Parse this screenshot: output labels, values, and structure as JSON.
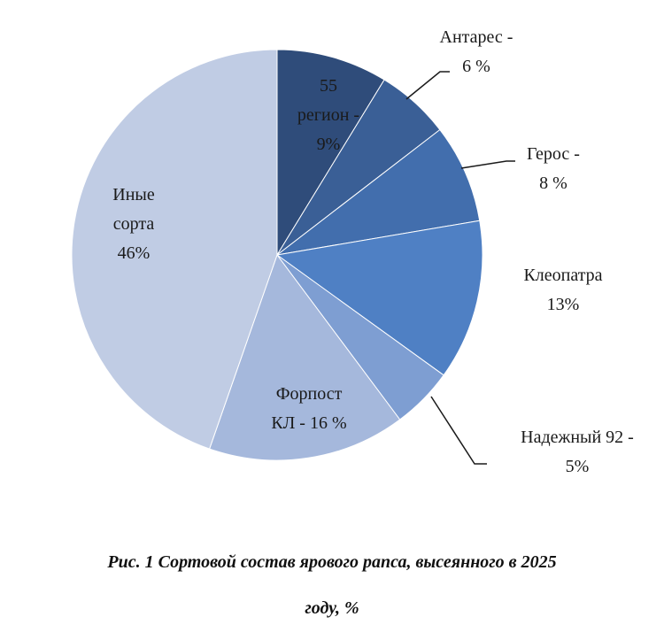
{
  "chart_data": {
    "type": "pie",
    "slices": [
      {
        "label_lines": [
          "55",
          "регион -",
          "9%"
        ],
        "value": 9,
        "color": "#2f4c7a"
      },
      {
        "label_lines": [
          "Антарес -",
          "6 %"
        ],
        "value": 6,
        "color": "#3a5f96"
      },
      {
        "label_lines": [
          "Герос -",
          "8 %"
        ],
        "value": 8,
        "color": "#426ead"
      },
      {
        "label_lines": [
          "Клеопатра",
          "13%"
        ],
        "value": 13,
        "color": "#4f80c4"
      },
      {
        "label_lines": [
          "Надежный 92 -",
          "5%"
        ],
        "value": 5,
        "color": "#7e9ed2"
      },
      {
        "label_lines": [
          "Форпост",
          "КЛ - 16 %"
        ],
        "value": 16,
        "color": "#a5b8dc"
      },
      {
        "label_lines": [
          "Иные",
          "сорта",
          "46%"
        ],
        "value": 46,
        "color": "#c0cce4"
      }
    ]
  },
  "caption": {
    "line1": "Рис. 1 Сортовой состав ярового рапса, высеянного в 2025",
    "line2": "году, %"
  }
}
